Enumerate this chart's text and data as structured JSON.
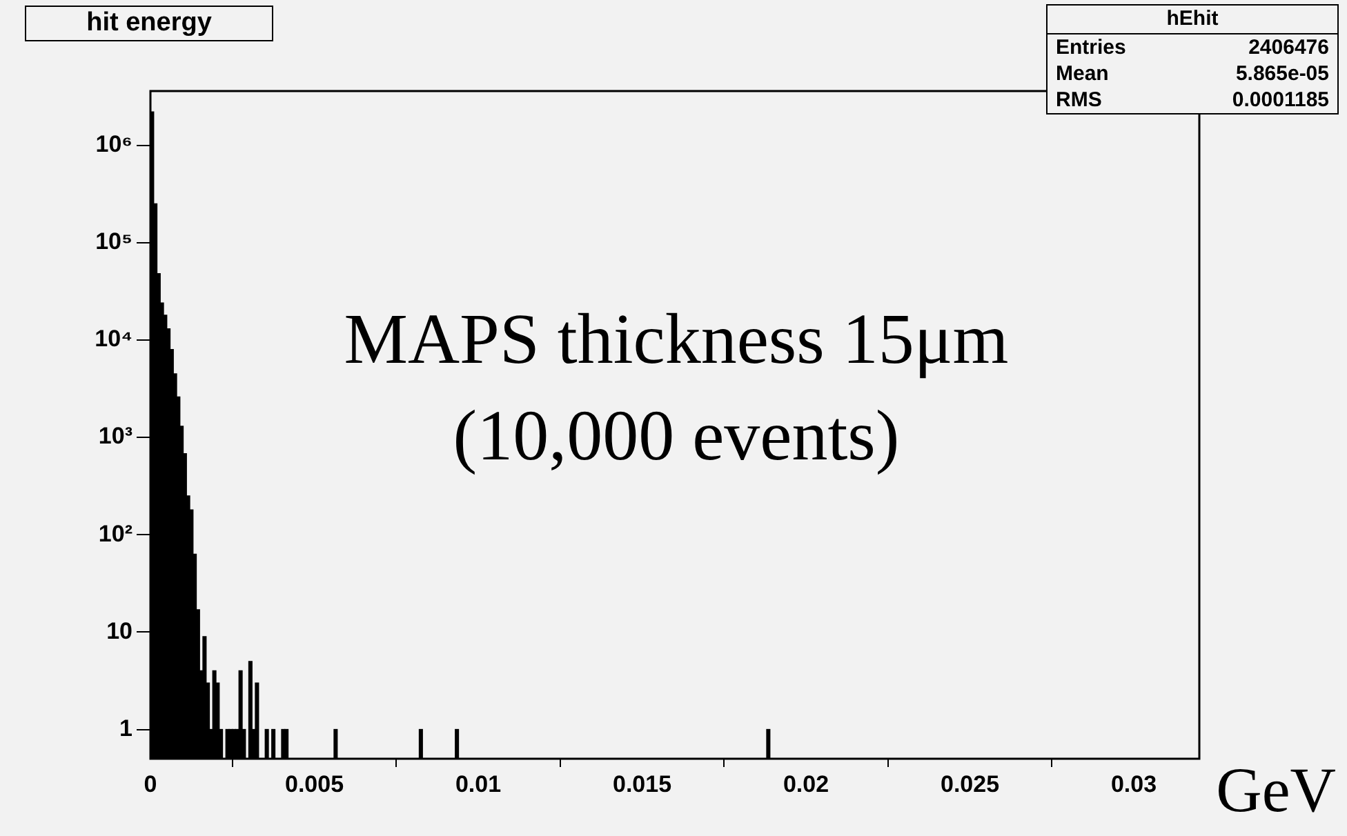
{
  "chart_data": {
    "type": "histogram",
    "title": "hit energy",
    "xlabel": "GeV",
    "annotations": [
      "MAPS thickness 15μm",
      "(10,000 events)",
      "hEhit",
      "Entries",
      "2406476",
      "Mean",
      "5.865e-05",
      "RMS",
      "0.0001185"
    ],
    "bins": [
      0,
      0.0001,
      0.0002,
      0.0003,
      0.0004,
      0.0005,
      0.0006,
      0.0007,
      0.0008,
      0.0009,
      0.001,
      0.0011,
      0.0012,
      0.0013,
      0.0014,
      0.0015,
      0.0016,
      0.0017,
      0.0018,
      0.0019,
      0.002,
      0.0021,
      0.0022,
      0.0023,
      0.0024,
      0.0025,
      0.0026,
      0.0027,
      0.0028,
      0.0029,
      0.003,
      0.0031,
      0.0032,
      0.0033,
      0.0035,
      0.0036,
      0.0037,
      0.0038,
      0.004,
      0.0041,
      0.0042,
      0.0056,
      0.0057,
      0.0082,
      0.0083,
      0.0093,
      0.0094,
      0.0188,
      0.0189
    ],
    "values": [
      2200000,
      250000,
      48000,
      24000,
      18000,
      13000,
      8000,
      4500,
      2600,
      1300,
      680,
      250,
      180,
      63,
      17,
      4,
      9,
      3,
      1,
      4,
      3,
      1,
      null,
      1,
      1,
      1,
      1,
      4,
      1,
      null,
      5,
      1,
      3,
      null,
      1,
      null,
      1,
      null,
      1,
      1,
      null,
      1,
      null,
      1,
      null,
      1,
      null,
      1
    ],
    "color": "#000000",
    "log": "y",
    "grid": false,
    "legend": false,
    "xlim": [
      0,
      0.032
    ],
    "xticks": [
      0,
      0.005,
      0.01,
      0.015,
      0.02,
      0.025,
      0.03
    ],
    "ylim": [
      0.5,
      3600000
    ],
    "yticks": [
      1,
      10,
      {
        "value": 100,
        "label": "10²"
      },
      {
        "value": 1000,
        "label": "10³"
      },
      {
        "value": 10000,
        "label": "10⁴"
      },
      {
        "value": 100000,
        "label": "10⁵"
      },
      {
        "value": 1000000,
        "label": "10⁶"
      }
    ]
  }
}
